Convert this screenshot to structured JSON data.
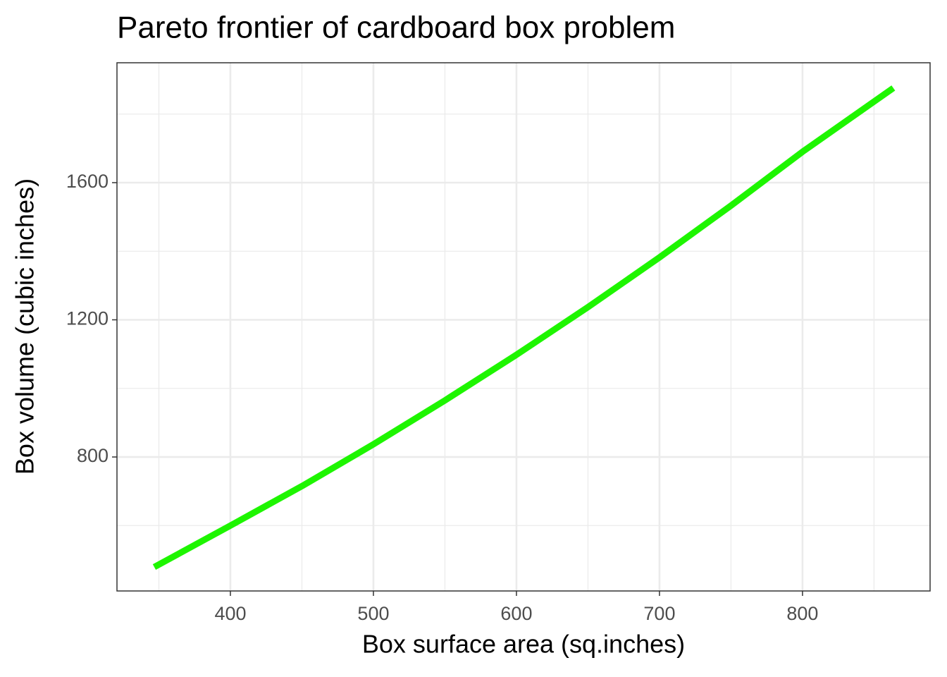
{
  "chart_data": {
    "type": "line",
    "title": "Pareto frontier of cardboard box problem",
    "x_label": "Box surface area (sq.inches)",
    "y_label": "Box volume (cubic inches)",
    "x": [
      346.8,
      400,
      450,
      500,
      550,
      600,
      650,
      700,
      750,
      800,
      863.5
    ],
    "series": [
      {
        "color": "#1ef500",
        "values": [
          479,
          600,
          715,
          837,
          965,
          1098,
          1237,
          1382,
          1533,
          1690,
          1876
        ]
      }
    ],
    "xlim": [
      320.7,
      889.2
    ],
    "xticks": [
      400,
      500,
      600,
      700,
      800
    ],
    "ylim": [
      409.3,
      1949.6
    ],
    "yticks": [
      800,
      1200,
      1600
    ],
    "x_minor_grid": [
      350,
      450,
      550,
      650,
      750,
      850
    ],
    "y_minor_grid": [
      600,
      1000,
      1400,
      1800
    ],
    "grid": true
  }
}
